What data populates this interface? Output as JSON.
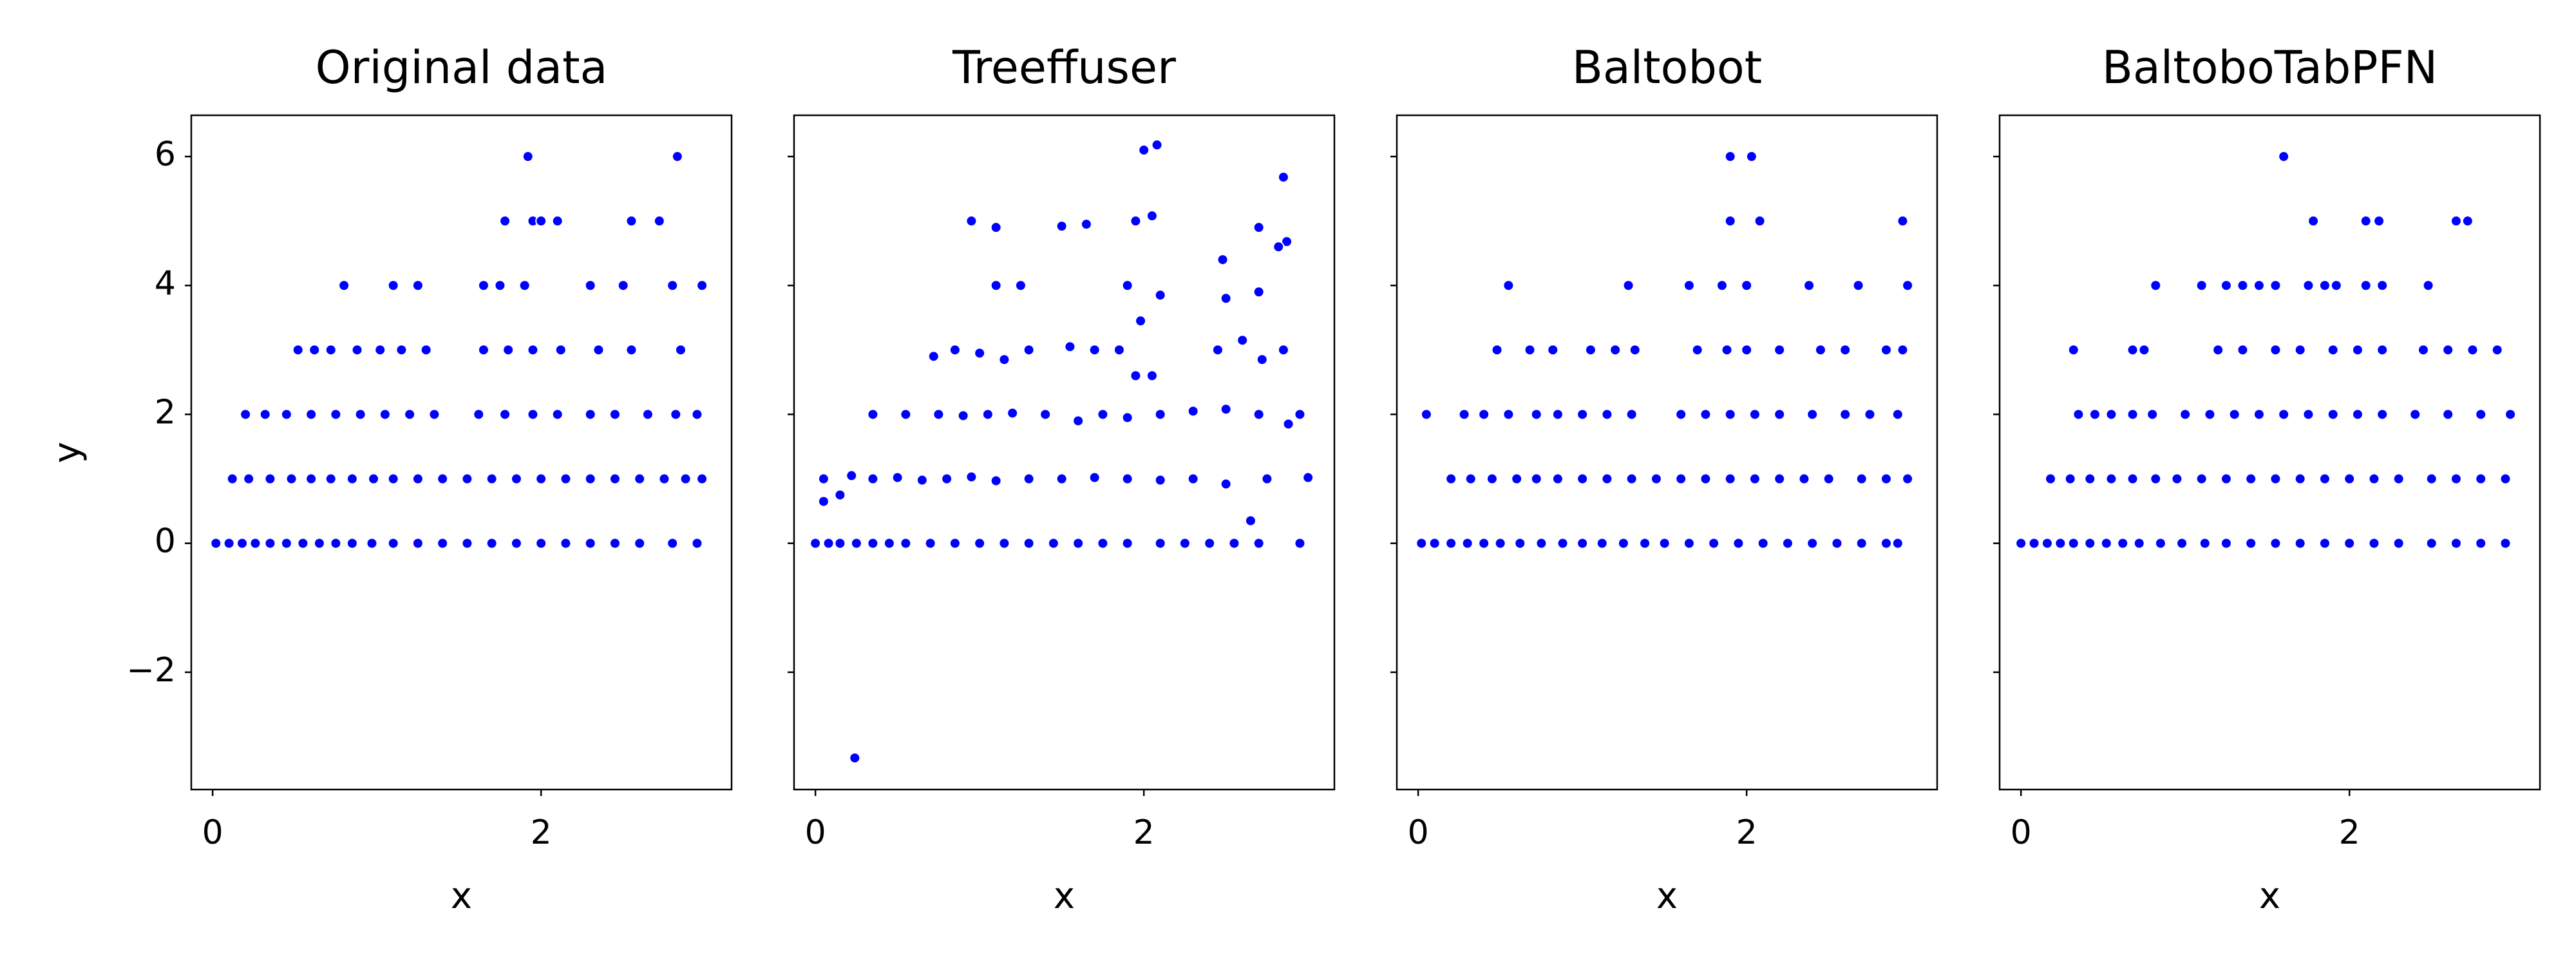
{
  "chart_data": [
    {
      "type": "scatter",
      "title": "Original data",
      "xlabel": "x",
      "ylabel": "y",
      "color": "#0000ff",
      "xlim": [
        -0.13,
        3.16
      ],
      "ylim": [
        -3.82,
        6.64
      ],
      "xticks": [
        0,
        2
      ],
      "yticks": [
        {
          "value": -2,
          "label": "−2"
        },
        0,
        2,
        4,
        6
      ],
      "show_ytick_labels": true,
      "x": [
        0.02,
        0.1,
        0.18,
        0.26,
        0.35,
        0.45,
        0.55,
        0.65,
        0.75,
        0.85,
        0.97,
        1.1,
        1.25,
        1.4,
        1.55,
        1.7,
        1.85,
        2.0,
        2.15,
        2.3,
        2.45,
        2.6,
        2.8,
        2.95,
        0.12,
        0.22,
        0.35,
        0.48,
        0.6,
        0.72,
        0.85,
        0.98,
        1.1,
        1.25,
        1.4,
        1.55,
        1.7,
        1.85,
        2.0,
        2.15,
        2.3,
        2.45,
        2.6,
        2.75,
        2.88,
        2.98,
        0.2,
        0.32,
        0.45,
        0.6,
        0.75,
        0.9,
        1.05,
        1.2,
        1.35,
        1.62,
        1.78,
        1.95,
        2.1,
        2.3,
        2.45,
        2.65,
        2.82,
        2.95,
        0.52,
        0.62,
        0.72,
        0.88,
        1.02,
        1.15,
        1.3,
        1.65,
        1.8,
        1.95,
        2.12,
        2.35,
        2.55,
        2.85,
        0.8,
        1.1,
        1.25,
        1.65,
        1.75,
        1.9,
        2.3,
        2.5,
        2.8,
        2.98,
        1.78,
        1.95,
        2.0,
        2.1,
        2.55,
        2.72,
        1.92,
        2.83
      ],
      "y": [
        0,
        0,
        0,
        0,
        0,
        0,
        0,
        0,
        0,
        0,
        0,
        0,
        0,
        0,
        0,
        0,
        0,
        0,
        0,
        0,
        0,
        0,
        0,
        0,
        1,
        1,
        1,
        1,
        1,
        1,
        1,
        1,
        1,
        1,
        1,
        1,
        1,
        1,
        1,
        1,
        1,
        1,
        1,
        1,
        1,
        1,
        2,
        2,
        2,
        2,
        2,
        2,
        2,
        2,
        2,
        2,
        2,
        2,
        2,
        2,
        2,
        2,
        2,
        2,
        3,
        3,
        3,
        3,
        3,
        3,
        3,
        3,
        3,
        3,
        3,
        3,
        3,
        3,
        4,
        4,
        4,
        4,
        4,
        4,
        4,
        4,
        4,
        4,
        5,
        5,
        5,
        5,
        5,
        5,
        6,
        6
      ]
    },
    {
      "type": "scatter",
      "title": "Treeffuser",
      "xlabel": "x",
      "color": "#0000ff",
      "xlim": [
        -0.13,
        3.16
      ],
      "ylim": [
        -3.82,
        6.64
      ],
      "xticks": [
        0,
        2
      ],
      "yticks": [
        -2,
        0,
        2,
        4,
        6
      ],
      "show_ytick_labels": false,
      "x": [
        0.0,
        0.08,
        0.15,
        0.25,
        0.35,
        0.45,
        0.55,
        0.7,
        0.85,
        1.0,
        1.15,
        1.3,
        1.45,
        1.6,
        1.75,
        1.9,
        2.1,
        2.25,
        2.4,
        2.55,
        2.7,
        2.95,
        0.05,
        0.15,
        0.22,
        0.35,
        0.5,
        0.65,
        0.8,
        0.95,
        1.1,
        1.3,
        1.5,
        1.7,
        1.9,
        2.1,
        2.3,
        2.5,
        2.75,
        3.0,
        0.35,
        0.55,
        0.75,
        0.9,
        1.05,
        1.2,
        1.4,
        1.6,
        1.75,
        1.9,
        2.1,
        2.3,
        2.5,
        2.7,
        2.88,
        2.95,
        0.72,
        0.85,
        1.0,
        1.15,
        1.3,
        1.55,
        1.7,
        1.85,
        2.45,
        2.6,
        2.72,
        2.85,
        1.1,
        1.25,
        1.9,
        2.1,
        2.48,
        2.5,
        2.7,
        2.87,
        0.95,
        1.1,
        1.5,
        1.65,
        1.95,
        2.05,
        2.7,
        2.82,
        2.0,
        2.08,
        2.85,
        0.24,
        2.65,
        1.95,
        2.05,
        1.98,
        2.6,
        0.05
      ],
      "y": [
        0,
        0,
        0,
        0,
        0,
        0,
        0,
        0,
        0,
        0,
        0,
        0,
        0,
        0,
        0,
        0,
        0,
        0,
        0,
        0,
        0,
        0,
        1,
        0.75,
        1.05,
        1,
        1.02,
        0.98,
        1,
        1.03,
        0.97,
        1,
        1,
        1.02,
        1,
        0.98,
        1,
        0.92,
        1,
        1.02,
        2,
        2,
        2,
        1.98,
        2,
        2.02,
        2,
        1.9,
        2,
        1.95,
        2,
        2.05,
        2.08,
        2,
        1.85,
        2,
        2.9,
        3,
        2.95,
        2.85,
        3,
        3.05,
        3,
        3,
        3,
        3.15,
        2.85,
        3,
        4,
        4,
        4,
        3.85,
        4.4,
        3.8,
        3.9,
        4.68,
        5,
        4.9,
        4.92,
        4.95,
        5,
        5.08,
        4.9,
        4.6,
        6.1,
        6.18,
        5.68,
        -3.33,
        0.35,
        2.6,
        2.6,
        3.45,
        3.15,
        0.65
      ]
    },
    {
      "type": "scatter",
      "title": "Baltobot",
      "xlabel": "x",
      "color": "#0000ff",
      "xlim": [
        -0.13,
        3.16
      ],
      "ylim": [
        -3.82,
        6.64
      ],
      "xticks": [
        0,
        2
      ],
      "yticks": [
        -2,
        0,
        2,
        4,
        6
      ],
      "show_ytick_labels": false,
      "x": [
        0.02,
        0.1,
        0.2,
        0.3,
        0.4,
        0.5,
        0.62,
        0.75,
        0.88,
        1.0,
        1.12,
        1.25,
        1.38,
        1.5,
        1.65,
        1.8,
        1.95,
        2.1,
        2.25,
        2.4,
        2.55,
        2.7,
        2.85,
        2.92,
        0.2,
        0.32,
        0.45,
        0.6,
        0.72,
        0.85,
        1.0,
        1.15,
        1.3,
        1.45,
        1.6,
        1.75,
        1.9,
        2.05,
        2.2,
        2.35,
        2.5,
        2.7,
        2.85,
        2.98,
        0.05,
        0.28,
        0.4,
        0.55,
        0.72,
        0.85,
        1.0,
        1.15,
        1.3,
        1.6,
        1.75,
        1.9,
        2.05,
        2.2,
        2.4,
        2.6,
        2.75,
        2.92,
        0.48,
        0.68,
        0.82,
        1.05,
        1.2,
        1.32,
        1.7,
        1.88,
        2.0,
        2.2,
        2.45,
        2.6,
        2.85,
        2.95,
        0.55,
        1.28,
        1.65,
        1.85,
        2.0,
        2.38,
        2.68,
        2.98,
        1.9,
        2.08,
        2.95,
        1.9,
        2.03
      ],
      "y": [
        0,
        0,
        0,
        0,
        0,
        0,
        0,
        0,
        0,
        0,
        0,
        0,
        0,
        0,
        0,
        0,
        0,
        0,
        0,
        0,
        0,
        0,
        0,
        0,
        1,
        1,
        1,
        1,
        1,
        1,
        1,
        1,
        1,
        1,
        1,
        1,
        1,
        1,
        1,
        1,
        1,
        1,
        1,
        1,
        2,
        2,
        2,
        2,
        2,
        2,
        2,
        2,
        2,
        2,
        2,
        2,
        2,
        2,
        2,
        2,
        2,
        2,
        3,
        3,
        3,
        3,
        3,
        3,
        3,
        3,
        3,
        3,
        3,
        3,
        3,
        3,
        4,
        4,
        4,
        4,
        4,
        4,
        4,
        4,
        5,
        5,
        5,
        6,
        6
      ]
    },
    {
      "type": "scatter",
      "title": "BaltoboTabPFN",
      "xlabel": "x",
      "color": "#0000ff",
      "xlim": [
        -0.13,
        3.16
      ],
      "ylim": [
        -3.82,
        6.64
      ],
      "xticks": [
        0,
        2
      ],
      "yticks": [
        -2,
        0,
        2,
        4,
        6
      ],
      "show_ytick_labels": false,
      "x": [
        0.0,
        0.08,
        0.16,
        0.24,
        0.32,
        0.42,
        0.52,
        0.62,
        0.72,
        0.85,
        0.98,
        1.12,
        1.25,
        1.4,
        1.55,
        1.7,
        1.85,
        2.0,
        2.15,
        2.3,
        2.5,
        2.65,
        2.8,
        2.95,
        0.18,
        0.3,
        0.42,
        0.55,
        0.68,
        0.82,
        0.95,
        1.1,
        1.25,
        1.4,
        1.55,
        1.7,
        1.85,
        2.0,
        2.15,
        2.3,
        2.5,
        2.65,
        2.8,
        2.95,
        0.35,
        0.45,
        0.55,
        0.68,
        0.8,
        1.0,
        1.15,
        1.3,
        1.45,
        1.6,
        1.75,
        1.9,
        2.05,
        2.2,
        2.4,
        2.6,
        2.8,
        2.98,
        0.32,
        0.68,
        0.75,
        1.2,
        1.35,
        1.55,
        1.7,
        1.9,
        2.05,
        2.2,
        2.45,
        2.6,
        2.75,
        2.9,
        0.82,
        1.1,
        1.25,
        1.35,
        1.45,
        1.55,
        1.75,
        1.85,
        1.92,
        2.1,
        2.2,
        2.48,
        1.78,
        2.1,
        2.18,
        2.65,
        2.72,
        1.6
      ],
      "y": [
        0,
        0,
        0,
        0,
        0,
        0,
        0,
        0,
        0,
        0,
        0,
        0,
        0,
        0,
        0,
        0,
        0,
        0,
        0,
        0,
        0,
        0,
        0,
        0,
        1,
        1,
        1,
        1,
        1,
        1,
        1,
        1,
        1,
        1,
        1,
        1,
        1,
        1,
        1,
        1,
        1,
        1,
        1,
        1,
        2,
        2,
        2,
        2,
        2,
        2,
        2,
        2,
        2,
        2,
        2,
        2,
        2,
        2,
        2,
        2,
        2,
        2,
        3,
        3,
        3,
        3,
        3,
        3,
        3,
        3,
        3,
        3,
        3,
        3,
        3,
        3,
        4,
        4,
        4,
        4,
        4,
        4,
        4,
        4,
        4,
        4,
        4,
        4,
        5,
        5,
        5,
        5,
        5,
        6
      ]
    }
  ]
}
